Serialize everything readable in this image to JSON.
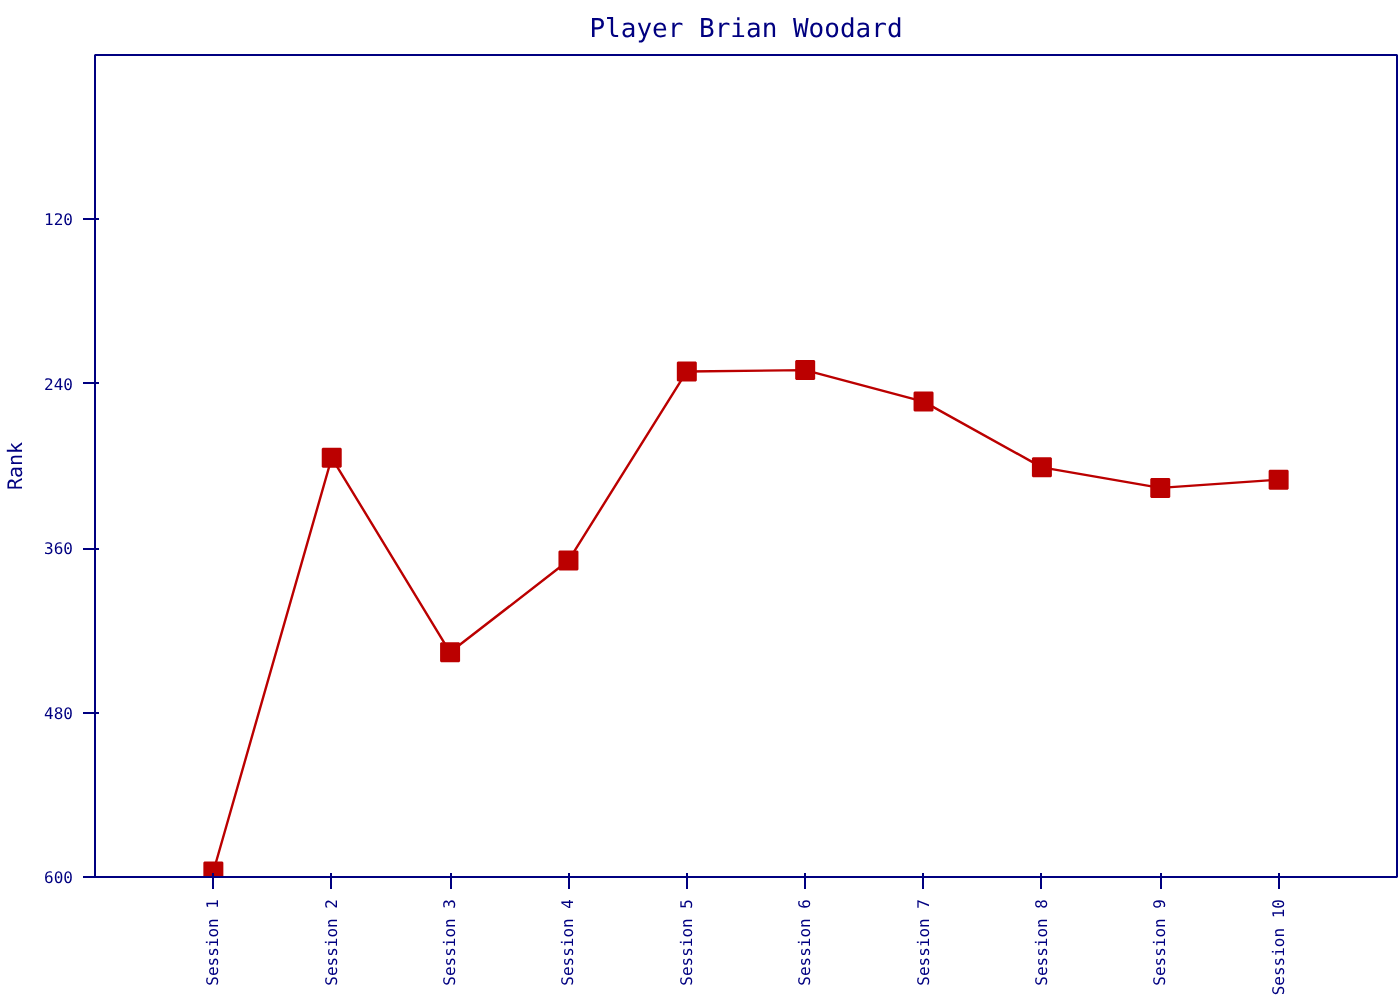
{
  "chart_data": {
    "type": "line",
    "title": "Player Brian Woodard",
    "ylabel": "Rank",
    "categories": [
      "Session 1",
      "Session 2",
      "Session 3",
      "Session 4",
      "Session 5",
      "Session 6",
      "Session 7",
      "Session 8",
      "Session 9",
      "Session 10"
    ],
    "series": [
      {
        "color": "#bb0000",
        "values": [
          596,
          294,
          436,
          369,
          231,
          230,
          253,
          301,
          316,
          310
        ]
      }
    ],
    "ylim": [
      600,
      0
    ],
    "yticks": [
      120,
      240,
      360,
      480,
      600
    ],
    "grid": false,
    "marker": "square",
    "line_style": "solid"
  }
}
